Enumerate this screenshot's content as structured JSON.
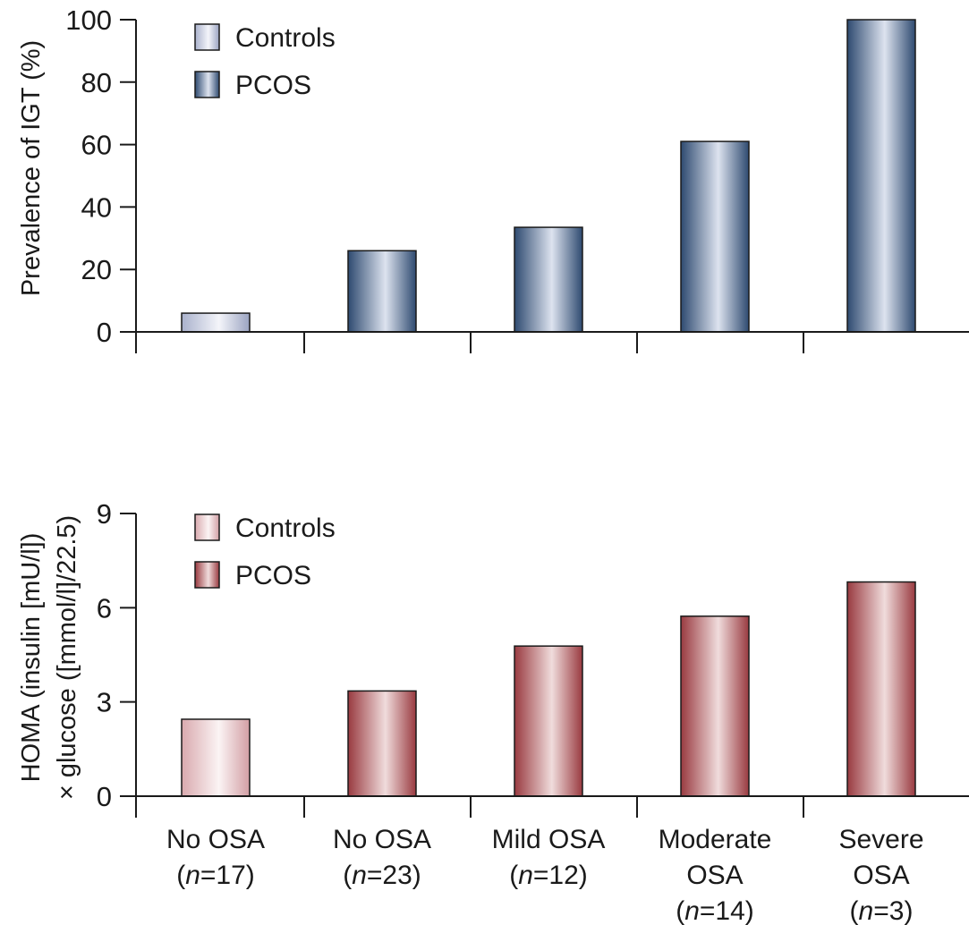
{
  "chart_data": [
    {
      "type": "bar",
      "ylabel": "Prevalence of IGT (%)",
      "ylim": [
        0,
        100
      ],
      "yticks": [
        0,
        20,
        40,
        60,
        80,
        100
      ],
      "categories": [
        "No OSA (n=17)",
        "No OSA (n=23)",
        "Mild OSA (n=12)",
        "Moderate OSA (n=14)",
        "Severe OSA (n=3)"
      ],
      "series": [
        {
          "name": "Controls",
          "color": "#b8c0d8",
          "values": [
            6,
            null,
            null,
            null,
            null
          ]
        },
        {
          "name": "PCOS",
          "color": "#3c5a80",
          "values": [
            null,
            26,
            33.5,
            61,
            100
          ]
        }
      ],
      "legend_position": "top-left",
      "grid": false
    },
    {
      "type": "bar",
      "ylabel": [
        "HOMA (insulin [mU/l])",
        "× glucose ([mmol/l]/22.5)"
      ],
      "ylim": [
        0,
        9
      ],
      "yticks": [
        0,
        3,
        6,
        9
      ],
      "categories": [
        "No OSA (n=17)",
        "No OSA (n=23)",
        "Mild OSA (n=12)",
        "Moderate OSA (n=14)",
        "Severe OSA (n=3)"
      ],
      "series": [
        {
          "name": "Controls",
          "color": "#e0b9bd",
          "values": [
            2.45,
            null,
            null,
            null,
            null
          ]
        },
        {
          "name": "PCOS",
          "color": "#a8474c",
          "values": [
            null,
            3.35,
            4.78,
            5.73,
            6.82
          ]
        }
      ],
      "legend_position": "top-left",
      "grid": false
    }
  ],
  "x_category_labels": [
    {
      "lines": [
        "No OSA",
        "(n=17)"
      ]
    },
    {
      "lines": [
        "No OSA",
        "(n=23)"
      ]
    },
    {
      "lines": [
        "Mild OSA",
        "(n=12)"
      ]
    },
    {
      "lines": [
        "Moderate",
        "OSA",
        "(n=14)"
      ]
    },
    {
      "lines": [
        "Severe",
        "OSA",
        "(n=3)"
      ]
    }
  ]
}
